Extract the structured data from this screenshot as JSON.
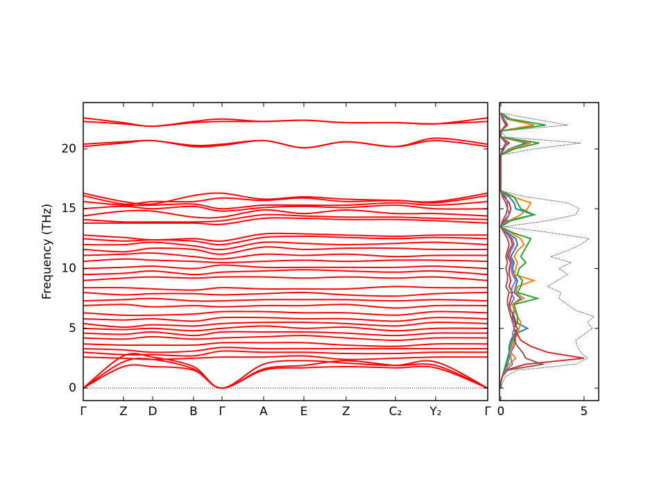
{
  "chart_data": [
    {
      "type": "band",
      "ylabel": "Frequency (THz)",
      "color": "#ff0000",
      "x": [
        0,
        0.58,
        1.0,
        1.59,
        2.0,
        2.6,
        3.18,
        3.79,
        4.5,
        5.08,
        5.83
      ],
      "xlim": [
        0,
        5.83
      ],
      "xticks": [
        {
          "value": 0,
          "label": "Γ"
        },
        {
          "value": 0.58,
          "label": "Z"
        },
        {
          "value": 1.0,
          "label": "D"
        },
        {
          "value": 1.59,
          "label": "B"
        },
        {
          "value": 2.0,
          "label": "Γ"
        },
        {
          "value": 2.6,
          "label": "A"
        },
        {
          "value": 3.18,
          "label": "E"
        },
        {
          "value": 3.79,
          "label": "Z"
        },
        {
          "value": 4.5,
          "label": "C₂"
        },
        {
          "value": 5.08,
          "label": "Y₂"
        },
        {
          "value": 5.83,
          "label": "Γ"
        }
      ],
      "ylim": [
        -1.04,
        23.88
      ],
      "yticks": [
        0,
        5,
        10,
        15,
        20
      ],
      "series": [
        {
          "values": [
            22.6,
            22.2,
            21.9,
            22.3,
            22.5,
            22.3,
            22.4,
            22.2,
            22.2,
            22.1,
            22.6
          ]
        },
        {
          "values": [
            22.3,
            22.1,
            21.9,
            22.2,
            22.3,
            22.3,
            22.4,
            22.2,
            22.2,
            22.1,
            22.3
          ]
        },
        {
          "values": [
            20.4,
            20.6,
            20.7,
            20.3,
            20.4,
            20.7,
            20.1,
            20.6,
            20.2,
            20.9,
            20.4
          ]
        },
        {
          "values": [
            20.2,
            20.5,
            20.7,
            20.2,
            20.3,
            20.7,
            20.1,
            20.6,
            20.2,
            20.7,
            20.2
          ]
        },
        {
          "values": [
            16.3,
            15.6,
            15.4,
            16.1,
            16.3,
            15.8,
            16.0,
            15.8,
            15.7,
            15.6,
            16.3
          ]
        },
        {
          "values": [
            16.1,
            15.4,
            15.6,
            15.6,
            15.9,
            15.7,
            15.9,
            15.6,
            15.7,
            15.5,
            16.1
          ]
        },
        {
          "values": [
            15.6,
            15.3,
            15.3,
            15.4,
            15.0,
            15.3,
            15.3,
            15.3,
            15.5,
            15.3,
            15.6
          ]
        },
        {
          "values": [
            15.0,
            15.2,
            15.0,
            15.2,
            14.8,
            15.1,
            15.2,
            15.1,
            15.3,
            15.0,
            15.0
          ]
        },
        {
          "values": [
            14.4,
            14.8,
            14.8,
            14.3,
            14.3,
            14.9,
            14.6,
            14.9,
            14.6,
            14.6,
            14.4
          ]
        },
        {
          "values": [
            14.1,
            13.9,
            13.9,
            13.9,
            14.0,
            14.5,
            14.4,
            14.3,
            14.3,
            14.2,
            14.1
          ]
        },
        {
          "values": [
            13.8,
            13.8,
            13.8,
            13.8,
            13.7,
            14.2,
            14.2,
            14.1,
            14.1,
            14.0,
            13.8
          ]
        },
        {
          "values": [
            12.8,
            12.6,
            12.4,
            12.5,
            12.3,
            12.9,
            12.9,
            12.8,
            12.7,
            12.8,
            12.8
          ]
        },
        {
          "values": [
            12.5,
            12.3,
            12.4,
            12.3,
            12.0,
            12.6,
            12.7,
            12.6,
            12.5,
            12.6,
            12.5
          ]
        },
        {
          "values": [
            12.0,
            12.0,
            12.2,
            11.9,
            11.6,
            12.2,
            12.1,
            12.0,
            12.1,
            12.2,
            12.0
          ]
        },
        {
          "values": [
            11.6,
            11.4,
            11.7,
            11.6,
            11.2,
            11.8,
            11.6,
            11.7,
            11.7,
            11.6,
            11.6
          ]
        },
        {
          "values": [
            11.1,
            11.2,
            11.3,
            11.0,
            10.8,
            11.2,
            11.1,
            11.2,
            11.0,
            11.1,
            11.1
          ]
        },
        {
          "values": [
            10.6,
            10.8,
            10.7,
            10.6,
            10.5,
            10.6,
            10.7,
            10.6,
            10.7,
            10.7,
            10.6
          ]
        },
        {
          "values": [
            10.0,
            10.1,
            10.2,
            10.0,
            10.3,
            10.1,
            10.1,
            10.1,
            10.1,
            10.2,
            10.0
          ]
        },
        {
          "values": [
            9.5,
            9.6,
            9.8,
            9.5,
            9.7,
            9.8,
            9.9,
            9.8,
            9.7,
            9.8,
            9.5
          ]
        },
        {
          "values": [
            9.0,
            9.2,
            9.3,
            9.2,
            9.3,
            9.3,
            9.2,
            9.3,
            9.2,
            9.3,
            9.0
          ]
        },
        {
          "values": [
            8.4,
            8.4,
            8.3,
            8.2,
            8.4,
            8.3,
            8.3,
            8.3,
            8.5,
            8.4,
            8.4
          ]
        },
        {
          "values": [
            8.0,
            7.8,
            7.9,
            7.9,
            7.8,
            7.9,
            8.0,
            7.8,
            7.7,
            7.9,
            8.0
          ]
        },
        {
          "values": [
            7.3,
            7.4,
            7.5,
            7.3,
            7.3,
            7.4,
            7.4,
            7.4,
            7.3,
            7.4,
            7.3
          ]
        },
        {
          "values": [
            6.9,
            7.0,
            6.8,
            6.9,
            6.8,
            6.9,
            6.9,
            7.0,
            6.7,
            6.9,
            6.9
          ]
        },
        {
          "values": [
            6.3,
            6.1,
            6.1,
            6.2,
            6.4,
            6.4,
            6.3,
            6.3,
            6.1,
            6.4,
            6.3
          ]
        },
        {
          "values": [
            5.8,
            5.7,
            5.8,
            5.6,
            5.9,
            5.9,
            5.8,
            5.8,
            5.6,
            5.9,
            5.8
          ]
        },
        {
          "values": [
            5.4,
            5.1,
            5.3,
            5.2,
            5.4,
            5.5,
            5.5,
            5.4,
            5.2,
            5.5,
            5.4
          ]
        },
        {
          "values": [
            5.0,
            4.9,
            5.0,
            4.8,
            5.0,
            5.2,
            5.0,
            5.1,
            4.8,
            5.0,
            5.0
          ]
        },
        {
          "values": [
            4.6,
            4.5,
            4.7,
            4.4,
            4.7,
            4.7,
            4.7,
            4.6,
            4.4,
            4.6,
            4.6
          ]
        },
        {
          "values": [
            4.2,
            4.1,
            4.3,
            4.1,
            4.2,
            4.3,
            4.4,
            4.2,
            4.0,
            4.2,
            4.2
          ]
        },
        {
          "values": [
            3.7,
            3.6,
            3.6,
            3.6,
            3.8,
            3.8,
            3.8,
            3.6,
            3.5,
            3.7,
            3.7
          ]
        },
        {
          "values": [
            3.3,
            3.2,
            3.0,
            3.1,
            3.4,
            3.3,
            3.3,
            3.3,
            3.3,
            3.3,
            3.3
          ]
        },
        {
          "values": [
            3.0,
            2.8,
            2.8,
            2.7,
            3.1,
            3.0,
            3.0,
            2.9,
            2.9,
            3.0,
            3.0
          ]
        },
        {
          "values": [
            2.6,
            2.5,
            2.4,
            2.5,
            2.6,
            2.6,
            2.7,
            2.4,
            2.5,
            2.6,
            2.6
          ]
        },
        {
          "values": [
            0,
            2.7,
            2.6,
            1.8,
            0,
            2.0,
            2.3,
            2.1,
            1.9,
            2.2,
            0
          ]
        },
        {
          "values": [
            0,
            2.2,
            2.4,
            1.6,
            0,
            1.6,
            1.9,
            2.3,
            1.9,
            1.9,
            0
          ]
        },
        {
          "values": [
            0,
            1.8,
            1.8,
            1.5,
            0,
            1.5,
            1.7,
            1.8,
            1.7,
            1.7,
            0
          ]
        }
      ]
    },
    {
      "type": "dos",
      "y": [
        0,
        0.5,
        1,
        1.5,
        2,
        2.5,
        3,
        3.5,
        4,
        4.5,
        5,
        5.5,
        6,
        6.5,
        7,
        7.5,
        8,
        8.5,
        9,
        9.5,
        10,
        10.5,
        11,
        11.5,
        12,
        12.5,
        13,
        13.5,
        14,
        14.5,
        15,
        15.5,
        16,
        16.5,
        17,
        17.5,
        18,
        18.5,
        19,
        19.5,
        20,
        20.5,
        21,
        21.5,
        22,
        22.5,
        23
      ],
      "xlim": [
        -0.08,
        5.88
      ],
      "xticks": [
        0,
        5
      ],
      "ylim": [
        -1.04,
        23.88
      ],
      "yticks": [
        0,
        5,
        10,
        15,
        20
      ],
      "series": [
        {
          "color": "#000000",
          "dotted": true,
          "values": [
            0,
            0.1,
            0.3,
            1.0,
            4.5,
            5.2,
            4.8,
            4.6,
            4.5,
            5.0,
            5.5,
            5.2,
            5.6,
            4.5,
            4.0,
            3.5,
            3.6,
            2.8,
            3.4,
            4.0,
            3.5,
            4.2,
            3.0,
            4.0,
            4.8,
            5.3,
            3.0,
            0.2,
            2.8,
            4.5,
            4.7,
            4.0,
            1.5,
            0,
            0,
            0,
            0,
            0,
            0,
            0,
            2.0,
            4.8,
            0.3,
            0,
            4.0,
            2.0,
            0
          ]
        },
        {
          "color": "#1f77b4",
          "values": [
            0,
            0,
            0.1,
            0.2,
            0.3,
            0.4,
            0.5,
            0.5,
            0.6,
            0.8,
            1.6,
            0.9,
            0.7,
            0.8,
            0.7,
            1.2,
            0.8,
            0.9,
            1.0,
            0.8,
            0.7,
            0.8,
            0.6,
            0.8,
            1.0,
            0.9,
            0.4,
            0,
            0.4,
            2.0,
            0.9,
            0.8,
            0.5,
            0,
            0,
            0,
            0,
            0,
            0,
            0,
            0.5,
            1.5,
            0,
            0,
            2.0,
            0.4,
            0
          ]
        },
        {
          "color": "#ff7f0e",
          "values": [
            0,
            0,
            0.1,
            0.2,
            0.5,
            0.9,
            0.6,
            0.7,
            0.8,
            1.0,
            1.1,
            1.2,
            1.0,
            0.8,
            0.7,
            1.4,
            0.9,
            1.0,
            2.0,
            0.8,
            0.9,
            1.0,
            0.8,
            1.0,
            1.4,
            1.2,
            0.6,
            0,
            0.5,
            1.2,
            1.6,
            1.8,
            0.7,
            0,
            0,
            0,
            0,
            0,
            0,
            0,
            0.6,
            1.8,
            0,
            0,
            2.0,
            0.5,
            0
          ]
        },
        {
          "color": "#2ca02c",
          "values": [
            0,
            0,
            0.1,
            0.2,
            0.4,
            0.5,
            0.5,
            0.6,
            0.7,
            0.9,
            0.8,
            1.0,
            1.0,
            0.9,
            0.8,
            2.2,
            1.0,
            1.2,
            1.3,
            1.0,
            1.1,
            1.5,
            1.2,
            1.4,
            1.6,
            1.8,
            0.7,
            0,
            0.6,
            2.0,
            1.2,
            1.0,
            0.8,
            0,
            0,
            0,
            0,
            0,
            0,
            0,
            0.8,
            2.3,
            0,
            0,
            2.7,
            0.6,
            0
          ]
        },
        {
          "color": "#d62728",
          "values": [
            0,
            0,
            0.1,
            0.3,
            1.5,
            5.0,
            2.8,
            1.8,
            1.2,
            1.0,
            0.8,
            0.9,
            0.8,
            0.6,
            0.5,
            0.6,
            0.7,
            0.5,
            0.6,
            0.5,
            0.5,
            0.6,
            0.4,
            0.5,
            0.7,
            0.6,
            0.3,
            0,
            0.2,
            0.5,
            0.6,
            0.5,
            0.2,
            0,
            0,
            0,
            0,
            0,
            0,
            0,
            0.1,
            0.5,
            0,
            0,
            0.4,
            0.2,
            0
          ]
        },
        {
          "color": "#9467bd",
          "values": [
            0,
            0,
            0.1,
            0.3,
            0.7,
            0.6,
            0.6,
            0.8,
            0.9,
            0.7,
            0.8,
            0.7,
            0.6,
            0.5,
            0.6,
            0.8,
            0.6,
            0.7,
            0.9,
            0.7,
            0.6,
            0.7,
            0.5,
            0.6,
            0.8,
            0.7,
            0.3,
            0,
            0.3,
            0.5,
            0.4,
            0.4,
            0.3,
            0,
            0,
            0,
            0,
            0,
            0,
            0,
            0.2,
            0.4,
            0,
            0,
            0.3,
            0.2,
            0
          ]
        },
        {
          "color": "#8c564b",
          "values": [
            0,
            0,
            0.1,
            0.4,
            2.5,
            1.5,
            1.3,
            1.0,
            0.8,
            0.9,
            1.0,
            0.8,
            0.6,
            0.5,
            0.4,
            0.4,
            0.5,
            0.3,
            0.4,
            0.4,
            0.3,
            0.4,
            0.3,
            0.4,
            0.5,
            0.4,
            0.2,
            0,
            0.1,
            0.3,
            0.4,
            0.3,
            0.1,
            0,
            0,
            0,
            0,
            0,
            0,
            0,
            0.1,
            0.3,
            0,
            0,
            0.3,
            0.1,
            0
          ]
        }
      ]
    }
  ]
}
